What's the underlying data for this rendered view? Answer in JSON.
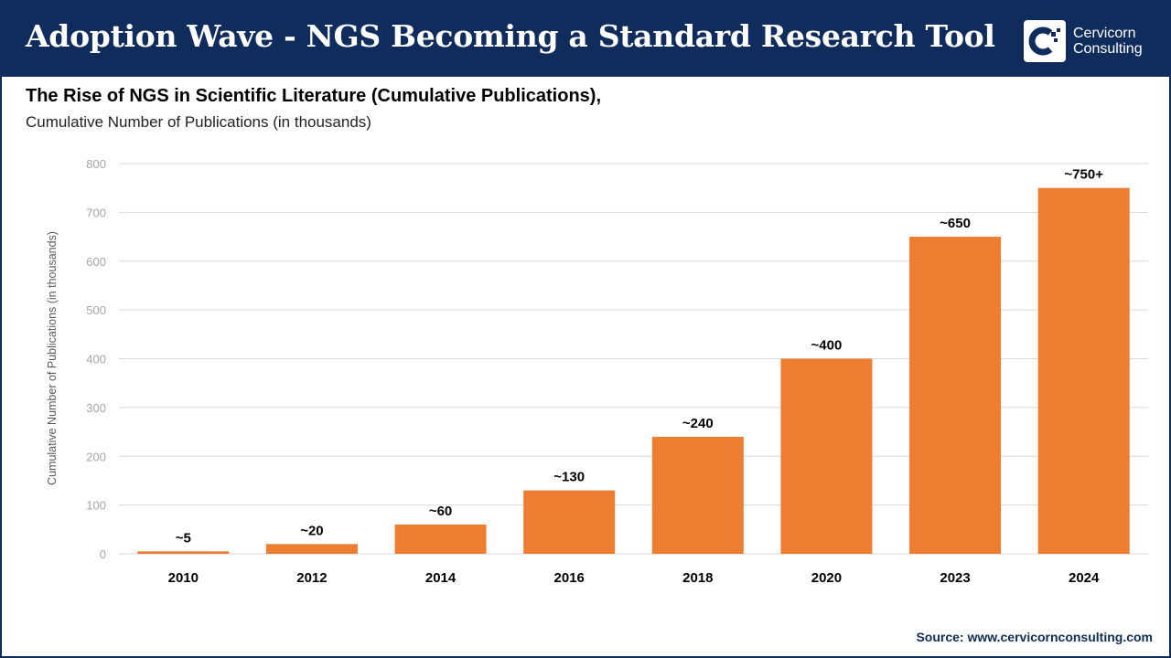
{
  "header": {
    "title": "Adoption Wave - NGS Becoming a Standard Research Tool"
  },
  "logo": {
    "line1": "Cervicorn",
    "line2": "Consulting"
  },
  "source": "Source: www.cervicornconsulting.com",
  "colors": {
    "header": "#0f2c5c",
    "bar": "#ed7d31",
    "grid": "#d9d9d9"
  },
  "chart_data": {
    "type": "bar",
    "title": "The Rise of NGS in Scientific Literature (Cumulative Publications),",
    "subtitle": "Cumulative Number of Publications (in thousands)",
    "ylabel": "Cumulative Number of Publications (in thousands)",
    "xlabel": "",
    "categories": [
      "2010",
      "2012",
      "2014",
      "2016",
      "2018",
      "2020",
      "2023",
      "2024"
    ],
    "values": [
      5,
      20,
      60,
      130,
      240,
      400,
      650,
      750
    ],
    "data_labels": [
      "~5",
      "~20",
      "~60",
      "~130",
      "~240",
      "~400",
      "~650",
      "~750+"
    ],
    "ylim": [
      0,
      800
    ],
    "yticks": [
      0,
      100,
      200,
      300,
      400,
      500,
      600,
      700,
      800
    ],
    "grid": true,
    "legend": "none"
  }
}
